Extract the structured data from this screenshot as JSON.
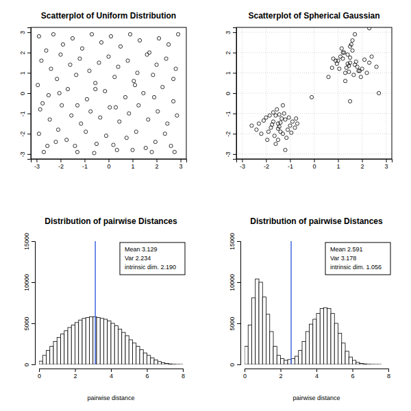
{
  "chart_data": [
    {
      "type": "scatter",
      "title": "Scatterplot of Uniform Distribution",
      "marker": "circle",
      "color": "#000000",
      "grid": false,
      "xlim": [
        -3.24,
        3.24
      ],
      "ylim": [
        -3.24,
        3.24
      ],
      "xticks": [
        -3,
        -2,
        -1,
        0,
        1,
        2,
        3
      ],
      "yticks": [
        -3,
        -2,
        -1,
        0,
        1,
        2,
        3
      ],
      "x": [
        -2.9,
        -2.6,
        -2.3,
        -1.9,
        -1.5,
        -1.1,
        -0.7,
        -0.3,
        0.1,
        0.5,
        0.9,
        1.3,
        1.7,
        2.1,
        2.5,
        2.9,
        -2.8,
        -2.4,
        -2.0,
        -1.6,
        -1.2,
        -0.8,
        -0.4,
        0.0,
        0.4,
        0.8,
        1.2,
        1.6,
        2.0,
        2.4,
        2.8,
        -2.95,
        -2.5,
        -2.15,
        -1.7,
        -1.35,
        -0.9,
        -0.55,
        -0.15,
        0.25,
        0.7,
        1.05,
        1.45,
        1.85,
        2.25,
        2.7,
        -2.85,
        -2.45,
        -1.95,
        -1.55,
        -1.15,
        -0.75,
        -0.35,
        0.05,
        0.45,
        0.85,
        1.25,
        1.65,
        2.05,
        2.45,
        2.85,
        -2.9,
        -2.55,
        -2.1,
        -1.75,
        -1.3,
        -0.95,
        -0.5,
        -0.1,
        0.35,
        0.75,
        1.15,
        1.55,
        1.95,
        2.35,
        2.75,
        -2.7,
        -2.2,
        -1.4,
        -0.6,
        0.2,
        1.0,
        1.8,
        2.6,
        -2.75,
        -2.05,
        -1.3,
        -0.55,
        0.3,
        1.1,
        1.9,
        2.7
      ],
      "y": [
        2.8,
        2.1,
        2.9,
        2.4,
        2.7,
        2.2,
        2.9,
        2.5,
        2.8,
        2.3,
        2.9,
        2.6,
        2.0,
        2.7,
        2.4,
        2.9,
        1.6,
        1.2,
        1.9,
        1.4,
        1.7,
        1.1,
        1.5,
        1.8,
        1.3,
        1.6,
        1.0,
        1.9,
        1.4,
        1.7,
        1.2,
        0.4,
        -0.1,
        0.7,
        0.2,
        0.9,
        -0.3,
        0.5,
        0.1,
        0.8,
        -0.2,
        0.6,
        0.0,
        0.9,
        0.3,
        -0.4,
        -0.8,
        -1.3,
        -0.6,
        -1.1,
        -1.5,
        -0.9,
        -1.2,
        -0.7,
        -1.4,
        -1.0,
        -0.6,
        -1.3,
        -0.9,
        -1.5,
        -1.1,
        -2.0,
        -2.6,
        -1.8,
        -2.3,
        -2.9,
        -1.9,
        -2.5,
        -2.1,
        -2.8,
        -2.2,
        -1.9,
        -2.7,
        -2.4,
        -2.0,
        -2.9,
        -2.9,
        -2.4,
        -2.6,
        -2.95,
        -2.55,
        -2.8,
        -2.9,
        -2.6,
        -0.5,
        0.0,
        -0.6,
        0.2,
        -0.7,
        0.4,
        -0.2,
        0.7
      ]
    },
    {
      "type": "scatter",
      "title": "Scatterplot of Spherical Gaussian",
      "marker": "circle",
      "color": "#000000",
      "grid": true,
      "xlim": [
        -3.24,
        3.24
      ],
      "ylim": [
        -3.24,
        3.24
      ],
      "xticks": [
        -3,
        -2,
        -1,
        0,
        1,
        2,
        3
      ],
      "yticks": [
        -3,
        -2,
        -1,
        0,
        1,
        2,
        3
      ],
      "x": [
        -1.5,
        -1.2,
        -1.8,
        -1.4,
        -1.0,
        -2.0,
        -1.6,
        -1.3,
        -1.7,
        -1.1,
        -2.3,
        -0.9,
        -1.5,
        -1.9,
        -1.25,
        -1.45,
        -2.1,
        -0.8,
        -1.65,
        -1.35,
        -1.55,
        -1.05,
        -2.4,
        -1.75,
        -1.15,
        -1.85,
        -0.95,
        -1.6,
        -2.2,
        -1.3,
        -1.5,
        -1.4,
        -1.7,
        -2.6,
        -1.2,
        -0.75,
        -1.95,
        -1.45,
        1.5,
        1.2,
        1.8,
        1.4,
        1.0,
        2.0,
        1.6,
        1.3,
        1.7,
        1.1,
        2.3,
        0.9,
        1.5,
        1.9,
        1.25,
        1.45,
        2.1,
        0.8,
        1.65,
        1.35,
        1.55,
        1.05,
        2.4,
        1.75,
        1.15,
        1.85,
        0.95,
        1.6,
        2.2,
        1.3,
        1.5,
        1.4,
        1.7,
        2.6,
        1.2,
        0.75,
        1.95,
        1.45,
        2.3,
        2.7,
        1.5,
        -0.1,
        -0.7,
        0.6
      ],
      "y": [
        -1.5,
        -1.3,
        -1.7,
        -1.9,
        -1.6,
        -1.2,
        -1.1,
        -2.0,
        -1.4,
        -1.8,
        -1.5,
        -1.4,
        -2.3,
        -1.9,
        -1.0,
        -1.65,
        -1.35,
        -1.7,
        -2.1,
        -1.25,
        -0.8,
        -1.2,
        -1.8,
        -1.55,
        -2.2,
        -1.1,
        -1.95,
        -2.5,
        -2.0,
        -0.6,
        -1.75,
        -1.45,
        -0.95,
        -1.6,
        -2.8,
        -1.25,
        -2.3,
        -1.05,
        1.5,
        1.7,
        1.3,
        1.9,
        1.6,
        1.2,
        2.1,
        1.0,
        1.4,
        1.8,
        1.5,
        1.6,
        2.3,
        1.1,
        2.0,
        1.35,
        1.65,
        1.7,
        0.9,
        1.25,
        2.4,
        1.2,
        1.8,
        1.55,
        2.2,
        1.1,
        1.45,
        2.6,
        1.0,
        0.6,
        1.75,
        1.45,
        2.9,
        1.3,
        2.0,
        1.25,
        0.8,
        1.05,
        3.2,
        0.0,
        -0.4,
        -0.2,
        -1.5,
        0.8
      ]
    },
    {
      "type": "histogram",
      "title": "Distribution of pairwise Distances",
      "xlabel": "pairwise distance",
      "color": "#ffffff",
      "xlim": [
        0,
        8
      ],
      "ylim": [
        0,
        15000
      ],
      "xticks": [
        0,
        2,
        4,
        6,
        8
      ],
      "yticks": [
        0,
        5000,
        10000,
        15000
      ],
      "bins": [
        0,
        0.2,
        0.4,
        0.6,
        0.8,
        1,
        1.2,
        1.4,
        1.6,
        1.8,
        2,
        2.2,
        2.4,
        2.6,
        2.8,
        3,
        3.2,
        3.4,
        3.6,
        3.8,
        4,
        4.2,
        4.4,
        4.6,
        4.8,
        5,
        5.2,
        5.4,
        5.6,
        5.8,
        6,
        6.2,
        6.4,
        6.6,
        6.8,
        7,
        7.2,
        7.4,
        7.6,
        7.8,
        8
      ],
      "counts": [
        400,
        1100,
        1700,
        2200,
        2800,
        3300,
        3700,
        4100,
        4500,
        4800,
        5100,
        5400,
        5600,
        5700,
        5800,
        5800,
        5700,
        5600,
        5500,
        5300,
        5000,
        4700,
        4300,
        3900,
        3500,
        3000,
        2600,
        2200,
        1800,
        1400,
        1100,
        800,
        550,
        350,
        220,
        120,
        60,
        25,
        8,
        2
      ],
      "vline": {
        "value": 3.129,
        "color": "#4169e1"
      },
      "annotations": [
        "Mean 3.129",
        "Var 2.234",
        "intrinsic dim. 2.190"
      ]
    },
    {
      "type": "histogram",
      "title": "Distribution of pairwise Distances",
      "xlabel": "pairwise distance",
      "color": "#ffffff",
      "xlim": [
        0,
        8
      ],
      "ylim": [
        0,
        15000
      ],
      "xticks": [
        0,
        2,
        4,
        6,
        8
      ],
      "yticks": [
        0,
        5000,
        10000,
        15000
      ],
      "bins": [
        0,
        0.2,
        0.4,
        0.6,
        0.8,
        1,
        1.2,
        1.4,
        1.6,
        1.8,
        2,
        2.2,
        2.4,
        2.6,
        2.8,
        3,
        3.2,
        3.4,
        3.6,
        3.8,
        4,
        4.2,
        4.4,
        4.6,
        4.8,
        5,
        5.2,
        5.4,
        5.6,
        5.8,
        6,
        6.2,
        6.4,
        6.6,
        6.8,
        7,
        7.2,
        7.4,
        7.6,
        7.8,
        8
      ],
      "counts": [
        2200,
        4800,
        8100,
        10400,
        10000,
        8200,
        6100,
        4000,
        2200,
        1100,
        700,
        500,
        600,
        700,
        1000,
        1700,
        2800,
        4000,
        4900,
        5500,
        6200,
        6800,
        6900,
        6800,
        6200,
        5000,
        3800,
        2600,
        1600,
        900,
        500,
        250,
        120,
        60,
        25,
        10,
        4,
        2,
        0,
        0
      ],
      "vline": {
        "value": 2.591,
        "color": "#4169e1"
      },
      "annotations": [
        "Mean 2.591",
        "Var 3.178",
        "intrinsic dim. 1.056"
      ]
    }
  ]
}
